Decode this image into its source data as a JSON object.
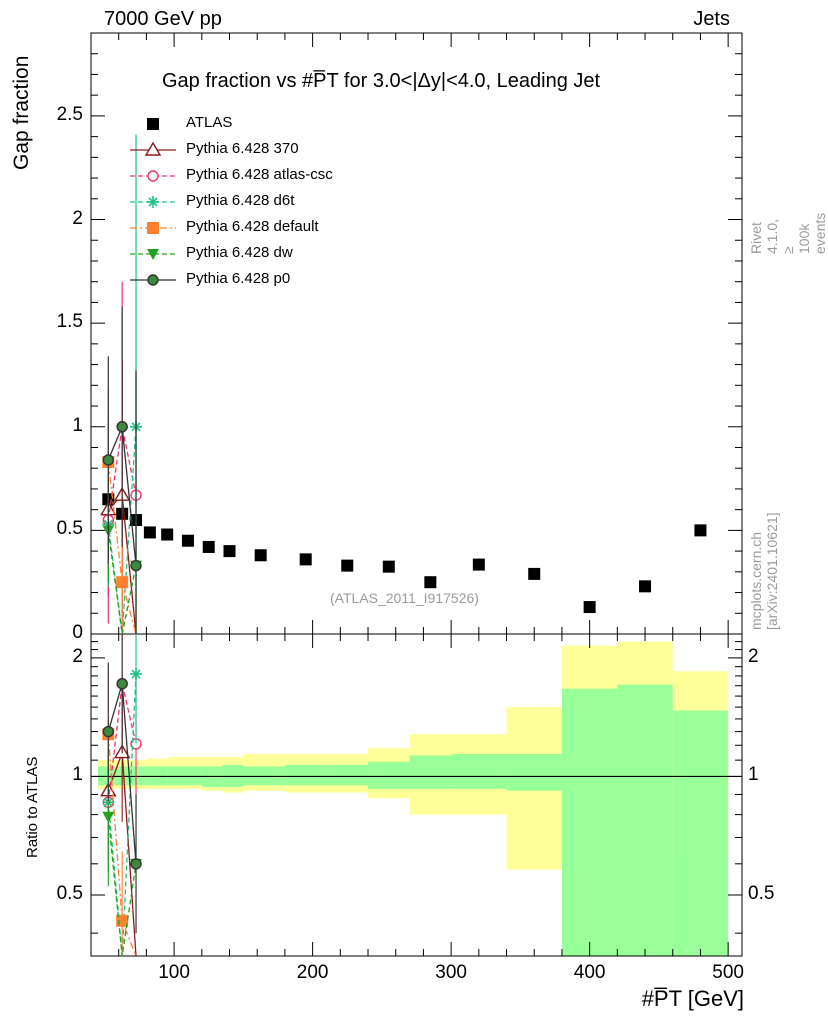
{
  "header": {
    "left_label": "7000 GeV pp",
    "right_label": "Jets",
    "title": "Gap fraction vs #P̅T for 3.0<|Δy|<4.0, Leading Jet",
    "side_rivet": "Rivet 4.1.0, ≥ 100k events",
    "side_mcplots": "mcplots.cern.ch [arXiv:2401.10621]",
    "watermark": "(ATLAS_2011_I917526)"
  },
  "chart_data": [
    {
      "type": "scatter",
      "panel": "main",
      "title": "Gap fraction vs #P̅T for 3.0<|Δy|<4.0, Leading Jet",
      "xlabel": "#P̅T [GeV]",
      "ylabel": "Gap fraction",
      "xlim": [
        40,
        510
      ],
      "ylim": [
        0,
        2.9
      ],
      "xticks": [
        "100",
        "200",
        "300",
        "400",
        "500"
      ],
      "yticks": [
        "0",
        "0.5",
        "1",
        "1.5",
        "2",
        "2.5"
      ],
      "legend_position": "top-left",
      "series": [
        {
          "name": "ATLAS",
          "color": "#000000",
          "marker": "square-filled",
          "x": [
            52.5,
            62.5,
            72.5,
            82.5,
            95,
            110,
            125,
            140,
            162.5,
            195,
            225,
            255,
            285,
            320,
            360,
            400,
            440,
            480
          ],
          "y": [
            0.65,
            0.58,
            0.55,
            0.49,
            0.48,
            0.45,
            0.42,
            0.4,
            0.38,
            0.36,
            0.33,
            0.325,
            0.25,
            0.335,
            0.29,
            0.13,
            0.23,
            0.5
          ]
        },
        {
          "name": "Pythia 6.428 370",
          "color": "#8b1a1a",
          "marker": "triangle-open",
          "dash": "solid",
          "x": [
            52.5,
            62.5,
            72.5
          ],
          "y": [
            0.6,
            0.67,
            0.0
          ],
          "err": [
            0.42,
            0.65,
            0.0
          ]
        },
        {
          "name": "Pythia 6.428 atlas-csc",
          "color": "#ee3366",
          "marker": "circle-open",
          "dash": "dashed",
          "x": [
            52.5,
            62.5,
            72.5
          ],
          "y": [
            0.55,
            1.0,
            0.67
          ],
          "err": [
            0.5,
            0.7,
            0.05
          ]
        },
        {
          "name": "Pythia 6.428 d6t",
          "color": "#20c080",
          "marker": "star",
          "dash": "dashed",
          "x": [
            52.5,
            62.5,
            72.5
          ],
          "y": [
            0.53,
            0.0,
            1.0
          ],
          "err": [
            0.3,
            0.0,
            1.41
          ]
        },
        {
          "name": "Pythia 6.428 default",
          "color": "#ff8030",
          "marker": "square-filled",
          "dash": "dashdot",
          "x": [
            52.5,
            62.5,
            72.5
          ],
          "y": [
            0.83,
            0.25,
            0.0
          ],
          "err": [
            0.36,
            0.25,
            0.0
          ]
        },
        {
          "name": "Pythia 6.428 dw",
          "color": "#20a020",
          "marker": "triangle-down-filled",
          "dash": "dashed",
          "x": [
            52.5,
            62.5,
            72.5
          ],
          "y": [
            0.5,
            0.0,
            0.33
          ],
          "err": [
            0.25,
            0.0,
            0.94
          ]
        },
        {
          "name": "Pythia 6.428 p0",
          "color": "#333333",
          "marker": "circle-open-green",
          "dash": "solid",
          "x": [
            52.5,
            62.5,
            72.5
          ],
          "y": [
            0.84,
            1.0,
            0.33
          ],
          "err": [
            0.5,
            0.58,
            0.94
          ]
        }
      ]
    },
    {
      "type": "line",
      "panel": "ratio",
      "ylabel": "Ratio to ATLAS",
      "ylim": [
        0.35,
        2.3
      ],
      "yticks": [
        "0.5",
        "1",
        "2"
      ],
      "band_edges": [
        45,
        60,
        70,
        80,
        95,
        105,
        120,
        135,
        150,
        180,
        210,
        240,
        270,
        300,
        340,
        380,
        420,
        460,
        500
      ],
      "band_inner": [
        [
          0.95,
          1.06
        ],
        [
          0.95,
          1.06
        ],
        [
          0.95,
          1.06
        ],
        [
          0.95,
          1.06
        ],
        [
          0.95,
          1.06
        ],
        [
          0.95,
          1.06
        ],
        [
          0.94,
          1.06
        ],
        [
          0.94,
          1.07
        ],
        [
          0.95,
          1.06
        ],
        [
          0.95,
          1.07
        ],
        [
          0.95,
          1.07
        ],
        [
          0.93,
          1.09
        ],
        [
          0.93,
          1.13
        ],
        [
          0.93,
          1.14
        ],
        [
          0.92,
          1.14
        ],
        [
          0.3,
          1.67
        ],
        [
          0.3,
          1.71
        ],
        [
          0.3,
          1.47
        ]
      ],
      "band_outer": [
        [
          0.93,
          1.1
        ],
        [
          0.93,
          1.1
        ],
        [
          0.93,
          1.1
        ],
        [
          0.93,
          1.11
        ],
        [
          0.93,
          1.12
        ],
        [
          0.93,
          1.12
        ],
        [
          0.92,
          1.12
        ],
        [
          0.91,
          1.12
        ],
        [
          0.92,
          1.14
        ],
        [
          0.91,
          1.14
        ],
        [
          0.91,
          1.14
        ],
        [
          0.88,
          1.18
        ],
        [
          0.8,
          1.28
        ],
        [
          0.8,
          1.28
        ],
        [
          0.58,
          1.5
        ],
        [
          0.3,
          2.15
        ],
        [
          0.3,
          2.2
        ],
        [
          0.62,
          1.85
        ]
      ],
      "series": [
        {
          "name": "Pythia 6.428 370",
          "x": [
            52.5,
            62.5,
            72.5
          ],
          "y": [
            0.92,
            1.15,
            0.0
          ]
        },
        {
          "name": "Pythia 6.428 atlas-csc",
          "x": [
            52.5,
            62.5,
            72.5
          ],
          "y": [
            0.86,
            1.72,
            1.21
          ]
        },
        {
          "name": "Pythia 6.428 d6t",
          "x": [
            52.5,
            62.5,
            72.5
          ],
          "y": [
            0.86,
            0.0,
            1.82
          ]
        },
        {
          "name": "Pythia 6.428 default",
          "x": [
            52.5,
            62.5,
            72.5
          ],
          "y": [
            1.28,
            0.43,
            0.0
          ]
        },
        {
          "name": "Pythia 6.428 dw",
          "x": [
            52.5,
            62.5,
            72.5
          ],
          "y": [
            0.79,
            0.0,
            0.6
          ]
        },
        {
          "name": "Pythia 6.428 p0",
          "x": [
            52.5,
            62.5,
            72.5
          ],
          "y": [
            1.3,
            1.72,
            0.6
          ]
        }
      ]
    }
  ]
}
